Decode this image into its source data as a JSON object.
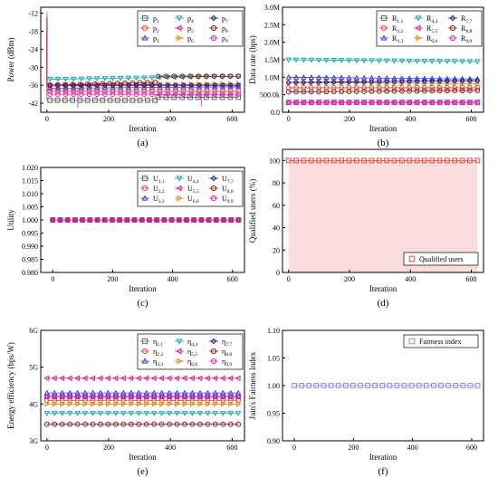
{
  "colors": {
    "gray": "#666666",
    "teal": "#1aa5a5",
    "red": "#e8453c",
    "magenta": "#e0189a",
    "blue": "#3a3ae0",
    "orange": "#d88c0a",
    "navy": "#1a1aa0",
    "darkred": "#8b1a1a",
    "pink": "#f020c0",
    "lavender": "#8888ee"
  },
  "chart_data": [
    {
      "type": "line",
      "panel_label": "(a)",
      "xlabel": "Iteration",
      "ylabel": "Power (dBm)",
      "xlim": [
        -20,
        640
      ],
      "ylim": [
        -45,
        -10
      ],
      "xticks": [
        "0",
        "200",
        "400",
        "600"
      ],
      "yticks": [
        "-12",
        "-18",
        "-24",
        "-30",
        "-36",
        "-42"
      ],
      "ytick_values": [
        -12,
        -18,
        -24,
        -30,
        -36,
        -42
      ],
      "legend": {
        "placement": "top-right",
        "columns": 3
      },
      "series": [
        {
          "name": "p1",
          "sub": "1",
          "color": "#666666",
          "marker": "square",
          "segments": [
            [
              0,
              -19.5,
              0,
              -19.5
            ],
            [
              0,
              -19.5,
              0,
              -41
            ],
            [
              10,
              -41,
              350,
              -41
            ],
            [
              360,
              -40,
              620,
              -40
            ]
          ]
        },
        {
          "name": "p2",
          "sub": "2",
          "color": "#e8453c",
          "marker": "circle",
          "segments": [
            [
              0,
              -18,
              0,
              -38
            ],
            [
              10,
              -38,
              620,
              -38
            ]
          ]
        },
        {
          "name": "p3",
          "sub": "3",
          "color": "#3a3ae0",
          "marker": "triangle-up",
          "segments": [
            [
              0,
              -13,
              0,
              -37
            ],
            [
              10,
              -37,
              620,
              -36.5
            ]
          ]
        },
        {
          "name": "p4",
          "sub": "4",
          "color": "#1aa5a5",
          "marker": "triangle-down",
          "segments": [
            [
              0,
              -11.5,
              0,
              -34
            ],
            [
              10,
              -34,
              620,
              -33
            ]
          ]
        },
        {
          "name": "p5",
          "sub": "5",
          "color": "#e0189a",
          "marker": "triangle-left",
          "segments": [
            [
              0,
              -13,
              0,
              -37
            ],
            [
              100,
              -37,
              100,
              -43.5
            ],
            [
              10,
              -36,
              620,
              -36
            ]
          ]
        },
        {
          "name": "p6",
          "sub": "6",
          "color": "#d88c0a",
          "marker": "triangle-right",
          "segments": [
            [
              0,
              -14,
              0,
              -36
            ],
            [
              10,
              -36,
              620,
              -35.5
            ]
          ]
        },
        {
          "name": "p7",
          "sub": "7",
          "color": "#1a1aa0",
          "marker": "diamond",
          "segments": [
            [
              0,
              -14,
              0,
              -36
            ],
            [
              10,
              -36,
              620,
              -36
            ]
          ]
        },
        {
          "name": "p8",
          "sub": "8",
          "color": "#8b1a1a",
          "marker": "circle",
          "segments": [
            [
              0,
              -14,
              0,
              -36
            ],
            [
              10,
              -36,
              350,
              -35
            ],
            [
              360,
              -33,
              620,
              -33
            ]
          ]
        },
        {
          "name": "p9",
          "sub": "9",
          "color": "#f020c0",
          "marker": "circle",
          "segments": [
            [
              0,
              -14,
              0,
              -37
            ],
            [
              10,
              -39,
              620,
              -39
            ],
            [
              500,
              -39,
              500,
              -43
            ]
          ]
        }
      ]
    },
    {
      "type": "line",
      "panel_label": "(b)",
      "xlabel": "Iteration",
      "ylabel": "Data rate (bps)",
      "xlim": [
        -20,
        640
      ],
      "ylim": [
        0,
        3000000
      ],
      "xticks": [
        "0",
        "200",
        "400",
        "600"
      ],
      "yticks": [
        "0.0",
        "500.0k",
        "1.0M",
        "1.5M",
        "2.0M",
        "2.5M",
        "3.0M"
      ],
      "ytick_values": [
        0,
        500000,
        1000000,
        1500000,
        2000000,
        2500000,
        3000000
      ],
      "legend": {
        "placement": "top-right",
        "columns": 3
      },
      "series": [
        {
          "name": "R1,1",
          "sub": "1,1",
          "color": "#666666",
          "marker": "square",
          "segments": [
            [
              0,
              280000,
              620,
              280000
            ]
          ]
        },
        {
          "name": "R2,2",
          "sub": "2,2",
          "color": "#e8453c",
          "marker": "circle",
          "segments": [
            [
              0,
              700000,
              620,
              700000
            ]
          ]
        },
        {
          "name": "R3,3",
          "sub": "3,3",
          "color": "#3a3ae0",
          "marker": "triangle-up",
          "segments": [
            [
              0,
              1000000,
              620,
              950000
            ]
          ]
        },
        {
          "name": "R4,4",
          "sub": "4,4",
          "color": "#1aa5a5",
          "marker": "triangle-down",
          "segments": [
            [
              0,
              1500000,
              620,
              1450000
            ]
          ]
        },
        {
          "name": "R5,5",
          "sub": "5,5",
          "color": "#e0189a",
          "marker": "triangle-left",
          "segments": [
            [
              0,
              280000,
              620,
              280000
            ]
          ]
        },
        {
          "name": "R6,6",
          "sub": "6,6",
          "color": "#d88c0a",
          "marker": "triangle-right",
          "segments": [
            [
              0,
              850000,
              620,
              820000
            ]
          ]
        },
        {
          "name": "R7,7",
          "sub": "7,7",
          "color": "#1a1aa0",
          "marker": "diamond",
          "segments": [
            [
              0,
              850000,
              620,
              900000
            ]
          ]
        },
        {
          "name": "R8,8",
          "sub": "8,8",
          "color": "#8b1a1a",
          "marker": "circle",
          "segments": [
            [
              0,
              580000,
              620,
              620000
            ]
          ]
        },
        {
          "name": "R9,9",
          "sub": "9,9",
          "color": "#f020c0",
          "marker": "circle",
          "segments": [
            [
              0,
              280000,
              620,
              280000
            ]
          ]
        }
      ]
    },
    {
      "type": "line",
      "panel_label": "(c)",
      "xlabel": "Iteration",
      "ylabel": "Utility",
      "xlim": [
        -40,
        640
      ],
      "ylim": [
        0.98,
        1.02
      ],
      "xticks": [
        "0",
        "200",
        "400",
        "600"
      ],
      "yticks": [
        "0.980",
        "0.985",
        "0.990",
        "0.995",
        "1.000",
        "1.005",
        "1.010",
        "1.015",
        "1.020"
      ],
      "ytick_values": [
        0.98,
        0.985,
        0.99,
        0.995,
        1.0,
        1.005,
        1.01,
        1.015,
        1.02
      ],
      "legend": {
        "placement": "top-right",
        "columns": 3
      },
      "series": [
        {
          "name": "U1,1",
          "sub": "1,1",
          "color": "#666666",
          "marker": "square",
          "segments": [
            [
              0,
              1.0,
              620,
              1.0
            ]
          ]
        },
        {
          "name": "U2,2",
          "sub": "2,2",
          "color": "#e8453c",
          "marker": "circle",
          "segments": [
            [
              0,
              1.0,
              620,
              1.0
            ]
          ]
        },
        {
          "name": "U3,3",
          "sub": "3,3",
          "color": "#3a3ae0",
          "marker": "triangle-up",
          "segments": [
            [
              0,
              1.0,
              620,
              1.0
            ]
          ]
        },
        {
          "name": "U4,4",
          "sub": "4,4",
          "color": "#1aa5a5",
          "marker": "triangle-down",
          "segments": [
            [
              0,
              1.0,
              620,
              1.0
            ]
          ]
        },
        {
          "name": "U5,5",
          "sub": "5,5",
          "color": "#e0189a",
          "marker": "triangle-left",
          "segments": [
            [
              0,
              1.0,
              620,
              1.0
            ]
          ]
        },
        {
          "name": "U6,6",
          "sub": "6,6",
          "color": "#d88c0a",
          "marker": "triangle-right",
          "segments": [
            [
              0,
              1.0,
              620,
              1.0
            ]
          ]
        },
        {
          "name": "U7,7",
          "sub": "7,7",
          "color": "#1a1aa0",
          "marker": "diamond",
          "segments": [
            [
              0,
              1.0,
              620,
              1.0
            ]
          ]
        },
        {
          "name": "U8,8",
          "sub": "8,8",
          "color": "#8b1a1a",
          "marker": "circle",
          "segments": [
            [
              0,
              1.0,
              620,
              1.0
            ]
          ]
        },
        {
          "name": "U9,9",
          "sub": "9,9",
          "color": "#f020c0",
          "marker": "circle",
          "segments": [
            [
              0,
              1.0,
              620,
              1.0
            ]
          ]
        }
      ]
    },
    {
      "type": "line",
      "panel_label": "(d)",
      "xlabel": "Iteration",
      "ylabel": "Qualified users (%)",
      "xlim": [
        -20,
        640
      ],
      "ylim": [
        0,
        110
      ],
      "xticks": [
        "0",
        "200",
        "400",
        "600"
      ],
      "yticks": [
        "0",
        "20",
        "40",
        "60",
        "80",
        "100"
      ],
      "ytick_values": [
        0,
        20,
        40,
        60,
        80,
        100
      ],
      "legend": {
        "placement": "bottom-right",
        "columns": 1
      },
      "series": [
        {
          "name": "Qualified users",
          "color": "#e8453c",
          "marker": "square",
          "segments": [
            [
              0,
              100,
              620,
              100
            ]
          ]
        }
      ]
    },
    {
      "type": "line",
      "panel_label": "(e)",
      "xlabel": "Iteration",
      "ylabel": "Energy efficiency (bps/W)",
      "xlim": [
        -20,
        640
      ],
      "ylim": [
        3000000000,
        6000000000
      ],
      "xticks": [
        "0",
        "200",
        "400",
        "600"
      ],
      "yticks": [
        "3G",
        "4G",
        "5G",
        "6G"
      ],
      "ytick_values": [
        3000000000,
        4000000000,
        5000000000,
        6000000000
      ],
      "legend": {
        "placement": "top-right",
        "columns": 3
      },
      "series": [
        {
          "name": "η1,1",
          "sub": "1,1",
          "color": "#666666",
          "marker": "square",
          "segments": [
            [
              0,
              4200000000,
              620,
              4200000000
            ]
          ]
        },
        {
          "name": "η2,2",
          "sub": "2,2",
          "color": "#e8453c",
          "marker": "circle",
          "segments": [
            [
              0,
              4100000000,
              620,
              4100000000
            ]
          ]
        },
        {
          "name": "η3,3",
          "sub": "3,3",
          "color": "#3a3ae0",
          "marker": "triangle-up",
          "segments": [
            [
              0,
              4300000000,
              620,
              4300000000
            ]
          ]
        },
        {
          "name": "η4,4",
          "sub": "4,4",
          "color": "#1aa5a5",
          "marker": "triangle-down",
          "segments": [
            [
              0,
              3750000000,
              620,
              3750000000
            ]
          ]
        },
        {
          "name": "η5,5",
          "sub": "5,5",
          "color": "#e0189a",
          "marker": "triangle-left",
          "segments": [
            [
              0,
              4700000000,
              620,
              4700000000
            ]
          ]
        },
        {
          "name": "η6,6",
          "sub": "6,6",
          "color": "#d88c0a",
          "marker": "triangle-right",
          "segments": [
            [
              0,
              4000000000,
              620,
              4000000000
            ]
          ]
        },
        {
          "name": "η7,7",
          "sub": "7,7",
          "color": "#1a1aa0",
          "marker": "diamond",
          "segments": [
            [
              0,
              4200000000,
              620,
              4200000000
            ]
          ]
        },
        {
          "name": "η8,8",
          "sub": "8,8",
          "color": "#8b1a1a",
          "marker": "circle",
          "segments": [
            [
              0,
              3450000000,
              620,
              3450000000
            ]
          ]
        },
        {
          "name": "η9,9",
          "sub": "9,9",
          "color": "#f020c0",
          "marker": "circle",
          "segments": [
            [
              0,
              4200000000,
              620,
              4200000000
            ]
          ]
        }
      ]
    },
    {
      "type": "line",
      "panel_label": "(f)",
      "xlabel": "Iteration",
      "ylabel": "Jain's Fairness Index",
      "xlim": [
        -40,
        640
      ],
      "ylim": [
        0.9,
        1.1
      ],
      "xticks": [
        "0",
        "200",
        "400",
        "600"
      ],
      "yticks": [
        "0.90",
        "0.95",
        "1.00",
        "1.05",
        "1.10"
      ],
      "ytick_values": [
        0.9,
        0.95,
        1.0,
        1.05,
        1.1
      ],
      "legend": {
        "placement": "top-right",
        "columns": 1
      },
      "series": [
        {
          "name": "Fairness index",
          "color": "#8888ee",
          "marker": "square",
          "segments": [
            [
              0,
              1.0,
              620,
              1.0
            ]
          ]
        }
      ]
    }
  ]
}
